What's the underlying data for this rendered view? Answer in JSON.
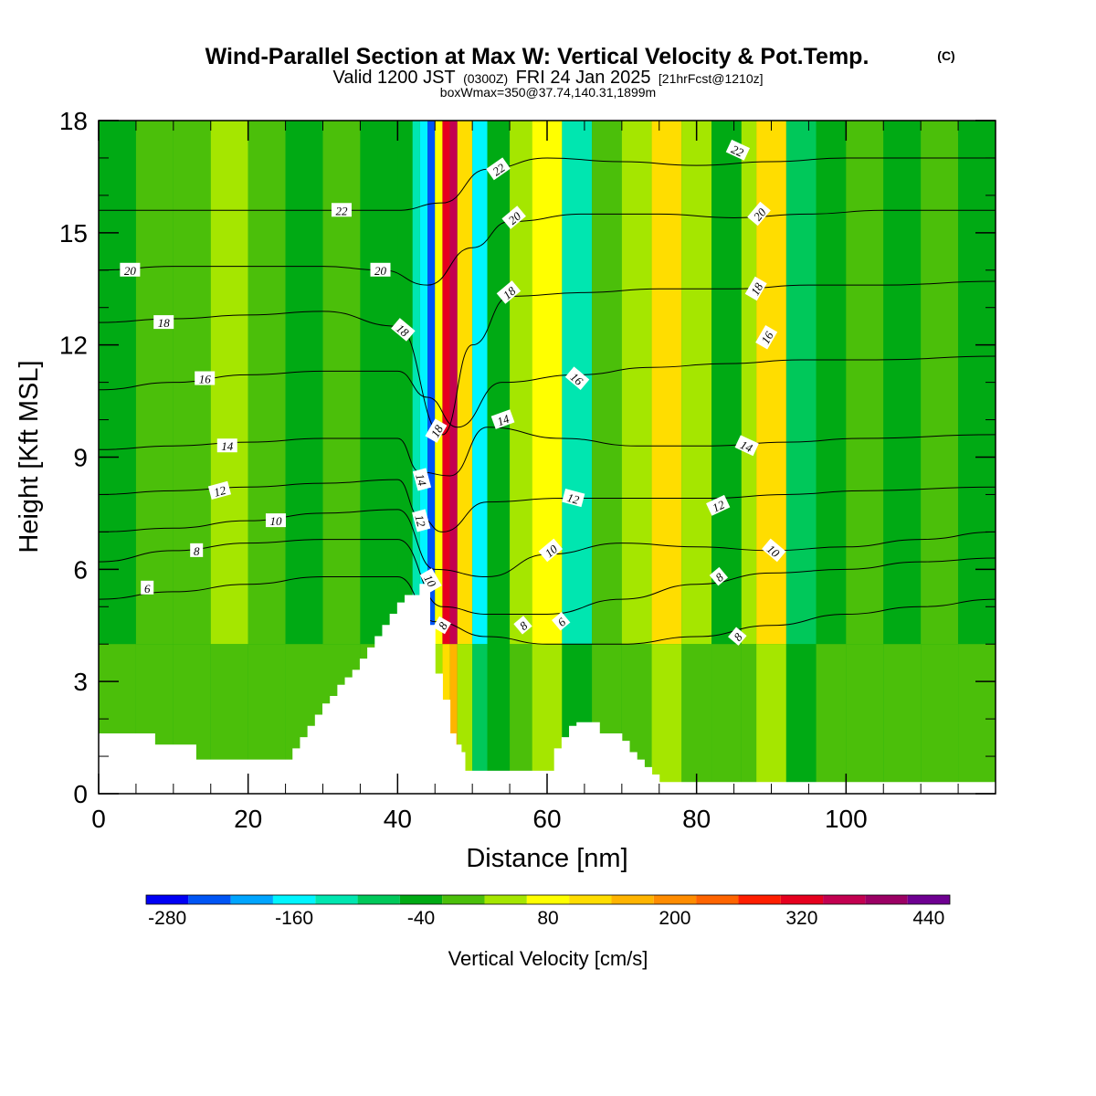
{
  "header": {
    "title": "Wind-Parallel Section at Max W: Vertical Velocity & Pot.Temp.",
    "copyright": "(C)",
    "valid_prefix": "Valid 1200 JST",
    "utc": "(0300Z)",
    "valid_date": "FRI 24 Jan 2025",
    "forecast": "[21hrFcst@1210z]",
    "box_info": "boxWmax=350@37.74,140.31,1899m"
  },
  "chart_data": {
    "type": "heatmap",
    "title": "Wind-Parallel Section at Max W: Vertical Velocity & Pot.Temp.",
    "xlabel": "Distance [nm]",
    "ylabel": "Height [Kft MSL]",
    "xlim": [
      0,
      120
    ],
    "ylim": [
      0,
      18
    ],
    "x_ticks": [
      0,
      20,
      40,
      60,
      80,
      100
    ],
    "y_ticks": [
      0,
      3,
      6,
      9,
      12,
      15,
      18
    ],
    "x_tick_labels": [
      "0",
      "20",
      "40",
      "60",
      "80",
      "100"
    ],
    "y_tick_labels": [
      "0",
      "3",
      "6",
      "9",
      "12",
      "15",
      "18"
    ],
    "grid": false,
    "colorbar": {
      "label": "Vertical Velocity [cm/s]",
      "levels": [
        -300,
        -260,
        -220,
        -180,
        -140,
        -100,
        -60,
        -20,
        20,
        60,
        100,
        140,
        180,
        220,
        260,
        300,
        340,
        380,
        420,
        460
      ],
      "tick_values": [
        -280,
        -160,
        -40,
        80,
        200,
        320,
        440
      ],
      "tick_labels": [
        "-280",
        "-160",
        "-40",
        "80",
        "200",
        "320",
        "440"
      ],
      "colors": [
        "#0000f5",
        "#0055f5",
        "#00a5ff",
        "#00f5ff",
        "#00e6b0",
        "#00c85a",
        "#00aa14",
        "#4bbf0a",
        "#a5e600",
        "#ffff00",
        "#ffdd00",
        "#ffb400",
        "#ff8c00",
        "#ff6400",
        "#ff1e00",
        "#e6001e",
        "#c30050",
        "#9b0064",
        "#6e0091"
      ]
    },
    "vertical_velocity_columns": {
      "note": "representative vertical velocity (cm/s) per distance band, upper levels",
      "x": [
        0,
        5,
        10,
        15,
        20,
        25,
        30,
        35,
        40,
        42,
        43,
        44,
        45,
        46,
        47,
        48,
        50,
        52,
        55,
        58,
        62,
        66,
        70,
        74,
        78,
        82,
        86,
        88,
        92,
        96,
        100,
        105,
        110,
        115,
        120
      ],
      "w": [
        -40,
        -10,
        0,
        20,
        -20,
        -40,
        -10,
        -30,
        -60,
        -120,
        -180,
        -240,
        60,
        300,
        360,
        120,
        -160,
        -60,
        40,
        60,
        -120,
        -20,
        40,
        100,
        20,
        -40,
        20,
        110,
        -100,
        -40,
        0,
        -40,
        -20,
        -40,
        -20
      ]
    },
    "series": [
      {
        "name": "6",
        "values": [
          [
            0,
            5.2
          ],
          [
            10,
            5.4
          ],
          [
            20,
            5.6
          ],
          [
            30,
            5.8
          ],
          [
            40,
            5.8
          ],
          [
            45,
            4.6
          ],
          [
            52,
            4.2
          ],
          [
            60,
            4.0
          ],
          [
            70,
            4.0
          ],
          [
            80,
            4.2
          ],
          [
            90,
            4.5
          ],
          [
            100,
            4.8
          ],
          [
            110,
            5.0
          ],
          [
            120,
            5.2
          ]
        ]
      },
      {
        "name": "8",
        "values": [
          [
            0,
            6.2
          ],
          [
            10,
            6.5
          ],
          [
            20,
            6.7
          ],
          [
            30,
            6.8
          ],
          [
            40,
            6.8
          ],
          [
            46,
            5.0
          ],
          [
            52,
            4.8
          ],
          [
            60,
            4.8
          ],
          [
            70,
            5.2
          ],
          [
            80,
            5.6
          ],
          [
            90,
            5.9
          ],
          [
            100,
            6.0
          ],
          [
            110,
            6.2
          ],
          [
            120,
            6.3
          ]
        ]
      },
      {
        "name": "10",
        "values": [
          [
            0,
            7.0
          ],
          [
            10,
            7.1
          ],
          [
            20,
            7.3
          ],
          [
            30,
            7.5
          ],
          [
            40,
            7.6
          ],
          [
            45,
            6.0
          ],
          [
            52,
            5.8
          ],
          [
            60,
            6.4
          ],
          [
            70,
            6.7
          ],
          [
            80,
            6.6
          ],
          [
            90,
            6.5
          ],
          [
            100,
            6.6
          ],
          [
            110,
            6.8
          ],
          [
            120,
            7.0
          ]
        ]
      },
      {
        "name": "12",
        "values": [
          [
            0,
            8.0
          ],
          [
            10,
            8.1
          ],
          [
            20,
            8.2
          ],
          [
            30,
            8.3
          ],
          [
            40,
            8.4
          ],
          [
            43,
            7.4
          ],
          [
            46,
            7.0
          ],
          [
            52,
            7.8
          ],
          [
            62,
            7.9
          ],
          [
            72,
            7.9
          ],
          [
            82,
            7.9
          ],
          [
            92,
            8.0
          ],
          [
            102,
            8.1
          ],
          [
            120,
            8.2
          ]
        ]
      },
      {
        "name": "14",
        "values": [
          [
            0,
            9.2
          ],
          [
            10,
            9.3
          ],
          [
            20,
            9.4
          ],
          [
            30,
            9.5
          ],
          [
            40,
            9.5
          ],
          [
            43,
            8.6
          ],
          [
            47,
            8.5
          ],
          [
            52,
            9.8
          ],
          [
            62,
            9.5
          ],
          [
            72,
            9.3
          ],
          [
            82,
            9.3
          ],
          [
            92,
            9.4
          ],
          [
            102,
            9.5
          ],
          [
            120,
            9.6
          ]
        ]
      },
      {
        "name": "16",
        "values": [
          [
            0,
            10.8
          ],
          [
            10,
            11.0
          ],
          [
            20,
            11.2
          ],
          [
            30,
            11.3
          ],
          [
            40,
            11.3
          ],
          [
            44,
            10.6
          ],
          [
            48,
            9.8
          ],
          [
            54,
            11.0
          ],
          [
            64,
            11.2
          ],
          [
            74,
            11.4
          ],
          [
            84,
            11.5
          ],
          [
            94,
            11.6
          ],
          [
            104,
            11.6
          ],
          [
            120,
            11.7
          ]
        ]
      },
      {
        "name": "18",
        "values": [
          [
            0,
            12.6
          ],
          [
            10,
            12.7
          ],
          [
            20,
            12.8
          ],
          [
            30,
            12.9
          ],
          [
            40,
            12.5
          ],
          [
            46,
            9.6
          ],
          [
            50,
            12.0
          ],
          [
            55,
            13.3
          ],
          [
            65,
            13.4
          ],
          [
            75,
            13.5
          ],
          [
            85,
            13.5
          ],
          [
            95,
            13.6
          ],
          [
            105,
            13.6
          ],
          [
            120,
            13.7
          ]
        ]
      },
      {
        "name": "20",
        "values": [
          [
            0,
            14.0
          ],
          [
            10,
            14.1
          ],
          [
            20,
            14.1
          ],
          [
            30,
            14.1
          ],
          [
            38,
            14.0
          ],
          [
            44,
            13.6
          ],
          [
            50,
            14.6
          ],
          [
            55,
            15.3
          ],
          [
            65,
            15.5
          ],
          [
            75,
            15.5
          ],
          [
            85,
            15.4
          ],
          [
            95,
            15.5
          ],
          [
            105,
            15.6
          ],
          [
            120,
            15.6
          ]
        ]
      },
      {
        "name": "22",
        "values": [
          [
            0,
            15.6
          ],
          [
            10,
            15.6
          ],
          [
            20,
            15.6
          ],
          [
            30,
            15.6
          ],
          [
            40,
            15.6
          ],
          [
            46,
            15.8
          ],
          [
            52,
            16.7
          ],
          [
            60,
            17.0
          ],
          [
            70,
            16.9
          ],
          [
            80,
            16.8
          ],
          [
            90,
            16.9
          ],
          [
            100,
            17.0
          ],
          [
            110,
            17.0
          ],
          [
            120,
            17.0
          ]
        ]
      }
    ],
    "contour_labels": [
      {
        "text": "20",
        "x": 4.2,
        "y": 14.0,
        "angle": 0
      },
      {
        "text": "18",
        "x": 8.7,
        "y": 12.6,
        "angle": 0
      },
      {
        "text": "16",
        "x": 14.2,
        "y": 11.1,
        "angle": 0
      },
      {
        "text": "14",
        "x": 17.2,
        "y": 9.3,
        "angle": 0
      },
      {
        "text": "12",
        "x": 16.2,
        "y": 8.1,
        "angle": -15
      },
      {
        "text": "10",
        "x": 23.7,
        "y": 7.3,
        "angle": 0
      },
      {
        "text": "8",
        "x": 13.1,
        "y": 6.5,
        "angle": 0
      },
      {
        "text": "6",
        "x": 6.5,
        "y": 5.5,
        "angle": 0
      },
      {
        "text": "22",
        "x": 32.5,
        "y": 15.6,
        "angle": 0
      },
      {
        "text": "20",
        "x": 37.7,
        "y": 14.0,
        "angle": 0
      },
      {
        "text": "18",
        "x": 40.7,
        "y": 12.4,
        "angle": 40
      },
      {
        "text": "18",
        "x": 45.2,
        "y": 9.7,
        "angle": -60
      },
      {
        "text": "14",
        "x": 43.2,
        "y": 8.4,
        "angle": 75
      },
      {
        "text": "12",
        "x": 43.1,
        "y": 7.3,
        "angle": 75
      },
      {
        "text": "10",
        "x": 44.4,
        "y": 5.7,
        "angle": 60
      },
      {
        "text": "8",
        "x": 46.0,
        "y": 4.5,
        "angle": -60
      },
      {
        "text": "22",
        "x": 53.5,
        "y": 16.7,
        "angle": -35
      },
      {
        "text": "20",
        "x": 55.6,
        "y": 15.4,
        "angle": -40
      },
      {
        "text": "18",
        "x": 54.9,
        "y": 13.4,
        "angle": -40
      },
      {
        "text": "16",
        "x": 64.0,
        "y": 11.1,
        "angle": 40
      },
      {
        "text": "14",
        "x": 54.1,
        "y": 10.0,
        "angle": -20
      },
      {
        "text": "12",
        "x": 63.5,
        "y": 7.9,
        "angle": 15
      },
      {
        "text": "10",
        "x": 60.5,
        "y": 6.5,
        "angle": -40
      },
      {
        "text": "8",
        "x": 56.8,
        "y": 4.5,
        "angle": -40
      },
      {
        "text": "6",
        "x": 61.9,
        "y": 4.6,
        "angle": -40
      },
      {
        "text": "22",
        "x": 85.5,
        "y": 17.2,
        "angle": 25
      },
      {
        "text": "20",
        "x": 88.4,
        "y": 15.5,
        "angle": -50
      },
      {
        "text": "18",
        "x": 88.0,
        "y": 13.5,
        "angle": -60
      },
      {
        "text": "16",
        "x": 89.4,
        "y": 12.2,
        "angle": -60
      },
      {
        "text": "14",
        "x": 86.7,
        "y": 9.3,
        "angle": 25
      },
      {
        "text": "12",
        "x": 82.9,
        "y": 7.7,
        "angle": -25
      },
      {
        "text": "10",
        "x": 90.3,
        "y": 6.5,
        "angle": 40
      },
      {
        "text": "8",
        "x": 83.0,
        "y": 5.8,
        "angle": -40
      },
      {
        "text": "8",
        "x": 85.5,
        "y": 4.2,
        "angle": -50
      }
    ],
    "terrain": {
      "x": [
        0,
        4,
        4,
        7.5,
        7.5,
        13,
        13,
        26,
        26,
        27,
        27,
        28,
        28,
        29,
        29,
        30,
        30,
        31,
        31,
        32,
        32,
        33,
        33,
        34,
        34,
        35,
        35,
        36,
        36,
        37,
        37,
        38,
        38,
        39,
        39,
        40,
        40,
        41,
        41,
        43,
        43,
        44.3,
        44.3,
        45,
        45,
        46,
        46,
        47,
        47,
        47.8,
        47.8,
        48.5,
        48.5,
        49,
        49,
        61,
        61,
        62,
        62,
        63,
        63,
        64,
        64,
        67,
        67,
        70,
        70,
        71,
        71,
        72,
        72,
        73,
        73,
        74,
        74,
        75,
        75,
        120
      ],
      "h": [
        1.6,
        1.6,
        1.6,
        1.6,
        1.3,
        1.3,
        0.9,
        0.9,
        1.2,
        1.2,
        1.5,
        1.5,
        1.8,
        1.8,
        2.1,
        2.1,
        2.4,
        2.4,
        2.6,
        2.6,
        2.9,
        2.9,
        3.1,
        3.1,
        3.3,
        3.3,
        3.6,
        3.6,
        3.9,
        3.9,
        4.2,
        4.2,
        4.5,
        4.5,
        4.8,
        4.8,
        5.1,
        5.1,
        5.3,
        5.3,
        5.6,
        5.6,
        4.5,
        4.5,
        3.2,
        3.2,
        2.5,
        2.5,
        1.6,
        1.6,
        1.3,
        1.3,
        1.1,
        1.1,
        0.6,
        0.6,
        1.2,
        1.2,
        1.5,
        1.5,
        1.8,
        1.8,
        1.9,
        1.9,
        1.6,
        1.6,
        1.4,
        1.4,
        1.1,
        1.1,
        0.9,
        0.9,
        0.7,
        0.7,
        0.5,
        0.5,
        0.3,
        0.3
      ]
    }
  }
}
